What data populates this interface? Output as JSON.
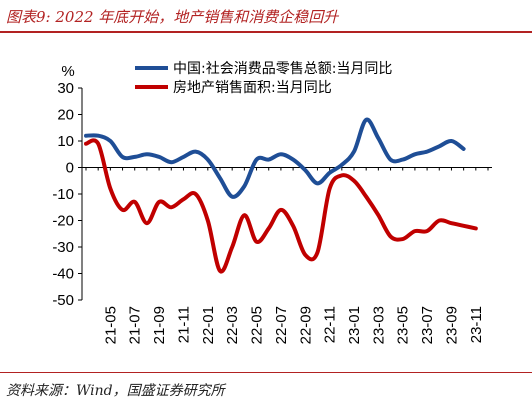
{
  "figure": {
    "title": "图表9:  2022 年底开始，地产销售和消费企稳回升",
    "source": "资料来源：Wind，国盛证券研究所"
  },
  "chart_data": {
    "type": "line",
    "ylabel": "%",
    "ylim": [
      -50,
      30
    ],
    "yticks": [
      30,
      20,
      10,
      0,
      -10,
      -20,
      -30,
      -40,
      -50
    ],
    "x_tick_labels": [
      "21-05",
      "21-07",
      "21-09",
      "21-11",
      "22-01",
      "22-03",
      "22-05",
      "22-07",
      "22-09",
      "22-11",
      "23-01",
      "23-03",
      "23-05",
      "23-07",
      "23-09",
      "23-11"
    ],
    "x": [
      "21-03",
      "21-04",
      "21-05",
      "21-06",
      "21-07",
      "21-08",
      "21-09",
      "21-10",
      "21-11",
      "21-12",
      "22-01",
      "22-02",
      "22-03",
      "22-04",
      "22-05",
      "22-06",
      "22-07",
      "22-08",
      "22-09",
      "22-10",
      "22-11",
      "22-12",
      "23-01",
      "23-02",
      "23-03",
      "23-04",
      "23-05",
      "23-06",
      "23-07",
      "23-08",
      "23-09",
      "23-10",
      "23-11",
      "23-12"
    ],
    "legend_position": "top",
    "series": [
      {
        "name": "中国:社会消费品零售总额:当月同比",
        "color": "#1f4e96",
        "values": [
          12,
          12,
          10,
          4,
          4,
          5,
          4,
          2,
          4,
          6,
          3,
          -4,
          -11,
          -7,
          3,
          3,
          5,
          3,
          -1,
          -6,
          -2,
          1,
          6,
          18,
          11,
          3,
          3,
          5,
          6,
          8,
          10,
          7,
          null,
          null
        ]
      },
      {
        "name": "房地产销售面积:当月同比",
        "color": "#c00000",
        "values": [
          9,
          9,
          -8,
          -16,
          -13,
          -21,
          -13,
          -15,
          -12,
          -10,
          -20,
          -39,
          -30,
          -18,
          -28,
          -23,
          -16,
          -22,
          -33,
          -32,
          -8,
          -3,
          -5,
          -11,
          -18,
          -26,
          -27,
          -24,
          -24,
          -20,
          -21,
          -22,
          -23,
          null
        ]
      }
    ]
  }
}
